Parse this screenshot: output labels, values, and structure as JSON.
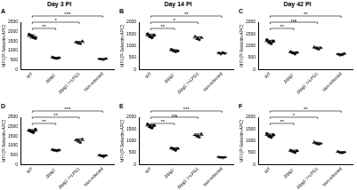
{
  "chart_data": [
    {
      "type": "scatter",
      "title": "Day 3 PI",
      "panel": "A",
      "y_label": "MFI (P-Selectin-APC)",
      "ylim": [
        0,
        2500
      ],
      "yticks": [
        0,
        500,
        1000,
        1500,
        2000,
        2500
      ],
      "grid": false,
      "series": [
        {
          "name": "WT",
          "values": [
            1850,
            1780,
            1700,
            1650
          ],
          "mean": 1745,
          "error": 90,
          "marker": "circle",
          "color": "#000000"
        },
        {
          "name": "Δlpg1⁻",
          "values": [
            650,
            600,
            580,
            620
          ],
          "mean": 612,
          "error": 30,
          "marker": "square",
          "color": "#000000"
        },
        {
          "name": "Δlpg1⁻/+LPG1",
          "values": [
            1450,
            1400,
            1350,
            1500
          ],
          "mean": 1425,
          "error": 60,
          "marker": "triangle",
          "color": "#000000"
        },
        {
          "name": "Non-infected",
          "values": [
            560,
            540,
            520,
            580
          ],
          "mean": 550,
          "error": 25,
          "marker": "triangle-down",
          "color": "#000000"
        }
      ],
      "brackets": [
        {
          "from": 0,
          "to": 1,
          "label": "**"
        },
        {
          "from": 0,
          "to": 2,
          "label": "*"
        },
        {
          "from": 0,
          "to": 3,
          "label": "***"
        }
      ]
    },
    {
      "type": "scatter",
      "title": "Day 14 PI",
      "panel": "B",
      "y_label": "MFI (P-Selectin-APC)",
      "ylim": [
        0,
        2000
      ],
      "yticks": [
        0,
        500,
        1000,
        1500,
        2000
      ],
      "grid": false,
      "series": [
        {
          "name": "WT",
          "values": [
            1500,
            1400,
            1350,
            1450
          ],
          "mean": 1425,
          "error": 60,
          "marker": "circle",
          "color": "#000000"
        },
        {
          "name": "Δlpg1⁻",
          "values": [
            850,
            800,
            750,
            780
          ],
          "mean": 795,
          "error": 40,
          "marker": "square",
          "color": "#000000"
        },
        {
          "name": "Δlpg1⁻/+LPG1",
          "values": [
            1400,
            1300,
            1250,
            1350
          ],
          "mean": 1325,
          "error": 60,
          "marker": "triangle",
          "color": "#000000"
        },
        {
          "name": "Non-infected",
          "values": [
            700,
            650,
            720,
            680
          ],
          "mean": 688,
          "error": 30,
          "marker": "triangle-down",
          "color": "#000000"
        }
      ],
      "brackets": [
        {
          "from": 0,
          "to": 1,
          "label": "**"
        },
        {
          "from": 0,
          "to": 2,
          "label": "*"
        },
        {
          "from": 0,
          "to": 3,
          "label": "**"
        }
      ]
    },
    {
      "type": "scatter",
      "title": "Day 42 PI",
      "panel": "C",
      "y_label": "MFI (P-Selectin-APC)",
      "ylim": [
        0,
        2000
      ],
      "yticks": [
        0,
        500,
        1000,
        1500,
        2000
      ],
      "grid": false,
      "series": [
        {
          "name": "WT",
          "values": [
            1250,
            1150,
            1100,
            1200
          ],
          "mean": 1175,
          "error": 60,
          "marker": "circle",
          "color": "#000000"
        },
        {
          "name": "Δlpg1⁻",
          "values": [
            750,
            700,
            650,
            720
          ],
          "mean": 705,
          "error": 40,
          "marker": "square",
          "color": "#000000"
        },
        {
          "name": "Δlpg1⁻/+LPG1",
          "values": [
            950,
            900,
            850,
            920
          ],
          "mean": 905,
          "error": 40,
          "marker": "triangle",
          "color": "#000000"
        },
        {
          "name": "Non-infected",
          "values": [
            650,
            600,
            620,
            680
          ],
          "mean": 638,
          "error": 35,
          "marker": "triangle-down",
          "color": "#000000"
        }
      ],
      "brackets": [
        {
          "from": 0,
          "to": 1,
          "label": "**"
        },
        {
          "from": 0,
          "to": 2,
          "label": "ns"
        },
        {
          "from": 0,
          "to": 3,
          "label": "**"
        }
      ]
    },
    {
      "type": "scatter",
      "panel": "D",
      "y_label": "MFI (P-Selectin-APC)",
      "ylim": [
        0,
        2500
      ],
      "yticks": [
        0,
        500,
        1000,
        1500,
        2000,
        2500
      ],
      "grid": false,
      "series": [
        {
          "name": "WT",
          "values": [
            1800,
            1750,
            1700,
            1850
          ],
          "mean": 1775,
          "error": 65,
          "marker": "circle",
          "color": "#000000"
        },
        {
          "name": "Δlpg1⁻",
          "values": [
            780,
            750,
            720,
            760
          ],
          "mean": 753,
          "error": 25,
          "marker": "square",
          "color": "#000000"
        },
        {
          "name": "Δlpg1⁻/+LPG1",
          "values": [
            1300,
            1250,
            1150,
            1350
          ],
          "mean": 1263,
          "error": 85,
          "marker": "triangle",
          "color": "#000000"
        },
        {
          "name": "Non-infected",
          "values": [
            500,
            450,
            400,
            480
          ],
          "mean": 458,
          "error": 45,
          "marker": "triangle-down",
          "color": "#000000"
        }
      ],
      "brackets": [
        {
          "from": 0,
          "to": 1,
          "label": "**"
        },
        {
          "from": 0,
          "to": 2,
          "label": "**"
        },
        {
          "from": 0,
          "to": 3,
          "label": "***"
        }
      ]
    },
    {
      "type": "scatter",
      "panel": "E",
      "y_label": "MFI (P-Selectin-APC)",
      "ylim": [
        0,
        2000
      ],
      "yticks": [
        0,
        500,
        1000,
        1500,
        2000
      ],
      "grid": false,
      "series": [
        {
          "name": "WT",
          "values": [
            1700,
            1600,
            1550,
            1650
          ],
          "mean": 1625,
          "error": 60,
          "marker": "circle",
          "color": "#000000"
        },
        {
          "name": "Δlpg1⁻",
          "values": [
            700,
            650,
            600,
            680
          ],
          "mean": 658,
          "error": 45,
          "marker": "square",
          "color": "#000000"
        },
        {
          "name": "Δlpg1⁻/+LPG1",
          "values": [
            1250,
            1200,
            1150,
            1300
          ],
          "mean": 1225,
          "error": 65,
          "marker": "triangle",
          "color": "#000000"
        },
        {
          "name": "Non-infected",
          "values": [
            320,
            300,
            280,
            310
          ],
          "mean": 303,
          "error": 20,
          "marker": "triangle-down",
          "color": "#000000"
        }
      ],
      "brackets": [
        {
          "from": 0,
          "to": 1,
          "label": "**"
        },
        {
          "from": 0,
          "to": 2,
          "label": "ns"
        },
        {
          "from": 0,
          "to": 3,
          "label": "***"
        }
      ]
    },
    {
      "type": "scatter",
      "panel": "F",
      "y_label": "MFI (P-Selectin-APC)",
      "ylim": [
        0,
        2000
      ],
      "yticks": [
        0,
        500,
        1000,
        1500,
        2000
      ],
      "grid": false,
      "series": [
        {
          "name": "WT",
          "values": [
            1300,
            1200,
            1150,
            1250
          ],
          "mean": 1225,
          "error": 65,
          "marker": "circle",
          "color": "#000000"
        },
        {
          "name": "Δlpg1⁻",
          "values": [
            600,
            550,
            500,
            580
          ],
          "mean": 558,
          "error": 45,
          "marker": "square",
          "color": "#000000"
        },
        {
          "name": "Δlpg1⁻/+LPG1",
          "values": [
            950,
            900,
            850,
            880
          ],
          "mean": 895,
          "error": 40,
          "marker": "triangle",
          "color": "#000000"
        },
        {
          "name": "Non-infected",
          "values": [
            550,
            500,
            480,
            520
          ],
          "mean": 513,
          "error": 30,
          "marker": "triangle-down",
          "color": "#000000"
        }
      ],
      "brackets": [
        {
          "from": 0,
          "to": 1,
          "label": "**"
        },
        {
          "from": 0,
          "to": 2,
          "label": "*"
        },
        {
          "from": 0,
          "to": 3,
          "label": "**"
        }
      ]
    }
  ]
}
